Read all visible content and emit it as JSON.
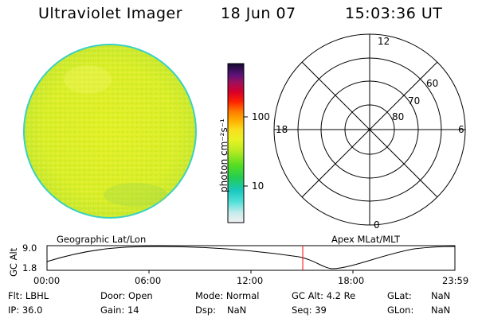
{
  "header": {
    "title": "Ultraviolet Imager",
    "date": "18 Jun 07",
    "time": "15:03:36 UT"
  },
  "colorbar": {
    "label": "photon cm⁻²s⁻¹",
    "ticks": [
      "100",
      "10"
    ]
  },
  "polar": {
    "labels": {
      "top": "12",
      "left": "18",
      "right": "6",
      "bottom": "0"
    },
    "lat_labels": [
      "60",
      "70",
      "80"
    ]
  },
  "timeline": {
    "left_title": "Geographic Lat/Lon",
    "right_title": "Apex MLat/MLT",
    "axis_label": "GC Alt",
    "y_ticks": [
      "9.0",
      "1.8"
    ],
    "x_ticks": [
      "00:00",
      "06:00",
      "12:00",
      "18:00",
      "23:59"
    ],
    "current_time_fraction": 0.627
  },
  "info": {
    "row1": [
      {
        "label": "Flt: LBHL"
      },
      {
        "label": "Door: Open"
      },
      {
        "label": "Mode: Normal"
      },
      {
        "label": "GC Alt: 4.2 Re"
      },
      {
        "label": "GLat:",
        "value": "NaN"
      }
    ],
    "row2": [
      {
        "label": "IP: 36.0"
      },
      {
        "label": "Gain: 14"
      },
      {
        "label": "Dsp:",
        "value": "NaN"
      },
      {
        "label": "Seq: 39"
      },
      {
        "label": "GLon:",
        "value": "NaN"
      }
    ]
  },
  "colors": {
    "disk_fill": "#d6ee24",
    "disk_edge": "#3ad1c0",
    "marker": "#ff0000"
  }
}
